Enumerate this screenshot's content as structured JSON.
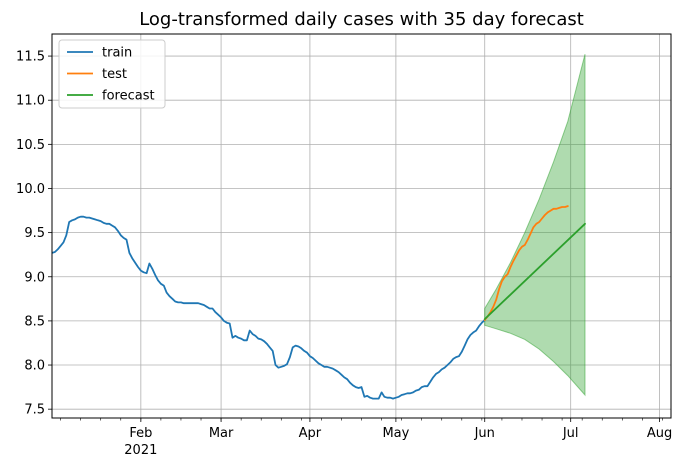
{
  "chart_data": {
    "type": "line",
    "title": "Log-transformed daily cases with 35 day forecast",
    "xlabel": "",
    "ylabel": "",
    "xlim": [
      "2021-01-01",
      "2021-08-05"
    ],
    "ylim": [
      7.4,
      11.75
    ],
    "grid": true,
    "legend_position": "top-left",
    "x_ticks": [
      {
        "date": "2021-02-01",
        "label": "Feb",
        "sublabel": "2021"
      },
      {
        "date": "2021-03-01",
        "label": "Mar",
        "sublabel": ""
      },
      {
        "date": "2021-04-01",
        "label": "Apr",
        "sublabel": ""
      },
      {
        "date": "2021-05-01",
        "label": "May",
        "sublabel": ""
      },
      {
        "date": "2021-06-01",
        "label": "Jun",
        "sublabel": ""
      },
      {
        "date": "2021-07-01",
        "label": "Jul",
        "sublabel": ""
      },
      {
        "date": "2021-08-01",
        "label": "Aug",
        "sublabel": ""
      }
    ],
    "y_ticks": [
      {
        "value": 7.5,
        "label": "7.5"
      },
      {
        "value": 8.0,
        "label": "8.0"
      },
      {
        "value": 8.5,
        "label": "8.5"
      },
      {
        "value": 9.0,
        "label": "9.0"
      },
      {
        "value": 9.5,
        "label": "9.5"
      },
      {
        "value": 10.0,
        "label": "10.0"
      },
      {
        "value": 10.5,
        "label": "10.5"
      },
      {
        "value": 11.0,
        "label": "11.0"
      },
      {
        "value": 11.5,
        "label": "11.5"
      }
    ],
    "series": [
      {
        "name": "train",
        "color": "#1f77b4",
        "points": [
          [
            "2021-01-01",
            9.27
          ],
          [
            "2021-01-02",
            9.28
          ],
          [
            "2021-01-03",
            9.31
          ],
          [
            "2021-01-04",
            9.35
          ],
          [
            "2021-01-05",
            9.39
          ],
          [
            "2021-01-06",
            9.47
          ],
          [
            "2021-01-07",
            9.62
          ],
          [
            "2021-01-08",
            9.64
          ],
          [
            "2021-01-09",
            9.65
          ],
          [
            "2021-01-10",
            9.67
          ],
          [
            "2021-01-11",
            9.68
          ],
          [
            "2021-01-12",
            9.68
          ],
          [
            "2021-01-13",
            9.67
          ],
          [
            "2021-01-14",
            9.67
          ],
          [
            "2021-01-15",
            9.66
          ],
          [
            "2021-01-16",
            9.65
          ],
          [
            "2021-01-17",
            9.64
          ],
          [
            "2021-01-18",
            9.63
          ],
          [
            "2021-01-19",
            9.61
          ],
          [
            "2021-01-20",
            9.6
          ],
          [
            "2021-01-21",
            9.6
          ],
          [
            "2021-01-22",
            9.58
          ],
          [
            "2021-01-23",
            9.56
          ],
          [
            "2021-01-24",
            9.52
          ],
          [
            "2021-01-25",
            9.47
          ],
          [
            "2021-01-26",
            9.44
          ],
          [
            "2021-01-27",
            9.42
          ],
          [
            "2021-01-28",
            9.27
          ],
          [
            "2021-01-29",
            9.21
          ],
          [
            "2021-01-30",
            9.16
          ],
          [
            "2021-01-31",
            9.11
          ],
          [
            "2021-02-01",
            9.07
          ],
          [
            "2021-02-02",
            9.05
          ],
          [
            "2021-02-03",
            9.04
          ],
          [
            "2021-02-04",
            9.15
          ],
          [
            "2021-02-05",
            9.09
          ],
          [
            "2021-02-06",
            9.02
          ],
          [
            "2021-02-07",
            8.96
          ],
          [
            "2021-02-08",
            8.92
          ],
          [
            "2021-02-09",
            8.9
          ],
          [
            "2021-02-10",
            8.82
          ],
          [
            "2021-02-11",
            8.78
          ],
          [
            "2021-02-12",
            8.75
          ],
          [
            "2021-02-13",
            8.72
          ],
          [
            "2021-02-14",
            8.71
          ],
          [
            "2021-02-15",
            8.71
          ],
          [
            "2021-02-16",
            8.7
          ],
          [
            "2021-02-17",
            8.7
          ],
          [
            "2021-02-18",
            8.7
          ],
          [
            "2021-02-19",
            8.7
          ],
          [
            "2021-02-20",
            8.7
          ],
          [
            "2021-02-21",
            8.7
          ],
          [
            "2021-02-22",
            8.69
          ],
          [
            "2021-02-23",
            8.68
          ],
          [
            "2021-02-24",
            8.66
          ],
          [
            "2021-02-25",
            8.64
          ],
          [
            "2021-02-26",
            8.64
          ],
          [
            "2021-02-27",
            8.6
          ],
          [
            "2021-02-28",
            8.57
          ],
          [
            "2021-03-01",
            8.54
          ],
          [
            "2021-03-02",
            8.5
          ],
          [
            "2021-03-03",
            8.48
          ],
          [
            "2021-03-04",
            8.47
          ],
          [
            "2021-03-05",
            8.31
          ],
          [
            "2021-03-06",
            8.33
          ],
          [
            "2021-03-07",
            8.31
          ],
          [
            "2021-03-08",
            8.3
          ],
          [
            "2021-03-09",
            8.28
          ],
          [
            "2021-03-10",
            8.28
          ],
          [
            "2021-03-11",
            8.39
          ],
          [
            "2021-03-12",
            8.35
          ],
          [
            "2021-03-13",
            8.33
          ],
          [
            "2021-03-14",
            8.3
          ],
          [
            "2021-03-15",
            8.29
          ],
          [
            "2021-03-16",
            8.27
          ],
          [
            "2021-03-17",
            8.24
          ],
          [
            "2021-03-18",
            8.2
          ],
          [
            "2021-03-19",
            8.16
          ],
          [
            "2021-03-20",
            8.0
          ],
          [
            "2021-03-21",
            7.97
          ],
          [
            "2021-03-22",
            7.98
          ],
          [
            "2021-03-23",
            7.99
          ],
          [
            "2021-03-24",
            8.01
          ],
          [
            "2021-03-25",
            8.09
          ],
          [
            "2021-03-26",
            8.2
          ],
          [
            "2021-03-27",
            8.22
          ],
          [
            "2021-03-28",
            8.21
          ],
          [
            "2021-03-29",
            8.19
          ],
          [
            "2021-03-30",
            8.16
          ],
          [
            "2021-03-31",
            8.14
          ],
          [
            "2021-04-01",
            8.1
          ],
          [
            "2021-04-02",
            8.08
          ],
          [
            "2021-04-03",
            8.05
          ],
          [
            "2021-04-04",
            8.02
          ],
          [
            "2021-04-05",
            8.0
          ],
          [
            "2021-04-06",
            7.98
          ],
          [
            "2021-04-07",
            7.98
          ],
          [
            "2021-04-08",
            7.97
          ],
          [
            "2021-04-09",
            7.96
          ],
          [
            "2021-04-10",
            7.94
          ],
          [
            "2021-04-11",
            7.92
          ],
          [
            "2021-04-12",
            7.89
          ],
          [
            "2021-04-13",
            7.86
          ],
          [
            "2021-04-14",
            7.84
          ],
          [
            "2021-04-15",
            7.8
          ],
          [
            "2021-04-16",
            7.77
          ],
          [
            "2021-04-17",
            7.75
          ],
          [
            "2021-04-18",
            7.74
          ],
          [
            "2021-04-19",
            7.75
          ],
          [
            "2021-04-20",
            7.64
          ],
          [
            "2021-04-21",
            7.65
          ],
          [
            "2021-04-22",
            7.63
          ],
          [
            "2021-04-23",
            7.62
          ],
          [
            "2021-04-24",
            7.62
          ],
          [
            "2021-04-25",
            7.62
          ],
          [
            "2021-04-26",
            7.69
          ],
          [
            "2021-04-27",
            7.64
          ],
          [
            "2021-04-28",
            7.63
          ],
          [
            "2021-04-29",
            7.63
          ],
          [
            "2021-04-30",
            7.62
          ],
          [
            "2021-05-01",
            7.63
          ],
          [
            "2021-05-02",
            7.64
          ],
          [
            "2021-05-03",
            7.66
          ],
          [
            "2021-05-04",
            7.67
          ],
          [
            "2021-05-05",
            7.68
          ],
          [
            "2021-05-06",
            7.68
          ],
          [
            "2021-05-07",
            7.69
          ],
          [
            "2021-05-08",
            7.71
          ],
          [
            "2021-05-09",
            7.72
          ],
          [
            "2021-05-10",
            7.75
          ],
          [
            "2021-05-11",
            7.76
          ],
          [
            "2021-05-12",
            7.76
          ],
          [
            "2021-05-13",
            7.81
          ],
          [
            "2021-05-14",
            7.86
          ],
          [
            "2021-05-15",
            7.9
          ],
          [
            "2021-05-16",
            7.92
          ],
          [
            "2021-05-17",
            7.95
          ],
          [
            "2021-05-18",
            7.97
          ],
          [
            "2021-05-19",
            8.0
          ],
          [
            "2021-05-20",
            8.03
          ],
          [
            "2021-05-21",
            8.07
          ],
          [
            "2021-05-22",
            8.09
          ],
          [
            "2021-05-23",
            8.1
          ],
          [
            "2021-05-24",
            8.15
          ],
          [
            "2021-05-25",
            8.22
          ],
          [
            "2021-05-26",
            8.29
          ],
          [
            "2021-05-27",
            8.34
          ],
          [
            "2021-05-28",
            8.37
          ],
          [
            "2021-05-29",
            8.39
          ],
          [
            "2021-05-30",
            8.44
          ],
          [
            "2021-05-31",
            8.48
          ],
          [
            "2021-06-01",
            8.51
          ]
        ]
      },
      {
        "name": "test",
        "color": "#ff7f0e",
        "points": [
          [
            "2021-06-01",
            8.51
          ],
          [
            "2021-06-02",
            8.55
          ],
          [
            "2021-06-03",
            8.6
          ],
          [
            "2021-06-04",
            8.66
          ],
          [
            "2021-06-05",
            8.74
          ],
          [
            "2021-06-06",
            8.86
          ],
          [
            "2021-06-07",
            8.95
          ],
          [
            "2021-06-08",
            9.0
          ],
          [
            "2021-06-09",
            9.03
          ],
          [
            "2021-06-10",
            9.11
          ],
          [
            "2021-06-11",
            9.18
          ],
          [
            "2021-06-12",
            9.24
          ],
          [
            "2021-06-13",
            9.3
          ],
          [
            "2021-06-14",
            9.34
          ],
          [
            "2021-06-15",
            9.36
          ],
          [
            "2021-06-16",
            9.42
          ],
          [
            "2021-06-17",
            9.49
          ],
          [
            "2021-06-18",
            9.56
          ],
          [
            "2021-06-19",
            9.6
          ],
          [
            "2021-06-20",
            9.62
          ],
          [
            "2021-06-21",
            9.66
          ],
          [
            "2021-06-22",
            9.7
          ],
          [
            "2021-06-23",
            9.73
          ],
          [
            "2021-06-24",
            9.75
          ],
          [
            "2021-06-25",
            9.77
          ],
          [
            "2021-06-26",
            9.77
          ],
          [
            "2021-06-27",
            9.78
          ],
          [
            "2021-06-28",
            9.79
          ],
          [
            "2021-06-29",
            9.79
          ],
          [
            "2021-06-30",
            9.8
          ]
        ]
      },
      {
        "name": "forecast",
        "color": "#2ca02c",
        "points": [
          [
            "2021-06-01",
            8.52
          ],
          [
            "2021-07-06",
            9.6
          ]
        ]
      }
    ],
    "confidence_band": {
      "color": "#2ca02c",
      "opacity": 0.38,
      "upper": [
        [
          "2021-06-01",
          8.64
        ],
        [
          "2021-06-05",
          8.86
        ],
        [
          "2021-06-10",
          9.16
        ],
        [
          "2021-06-15",
          9.5
        ],
        [
          "2021-06-20",
          9.88
        ],
        [
          "2021-06-25",
          10.3
        ],
        [
          "2021-06-30",
          10.76
        ],
        [
          "2021-07-06",
          11.52
        ]
      ],
      "lower": [
        [
          "2021-06-01",
          8.45
        ],
        [
          "2021-06-05",
          8.41
        ],
        [
          "2021-06-10",
          8.36
        ],
        [
          "2021-06-15",
          8.29
        ],
        [
          "2021-06-20",
          8.18
        ],
        [
          "2021-06-25",
          8.04
        ],
        [
          "2021-06-30",
          7.88
        ],
        [
          "2021-07-06",
          7.66
        ]
      ]
    }
  }
}
